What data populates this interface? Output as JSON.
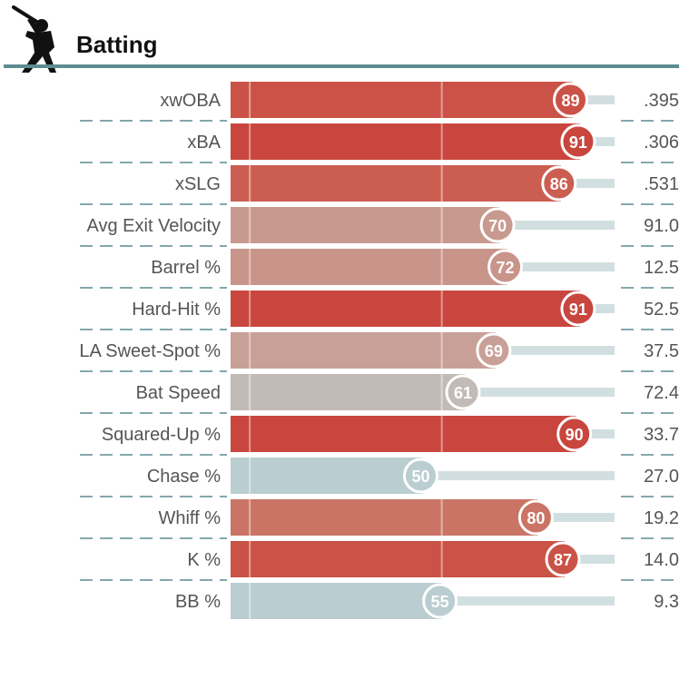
{
  "header": {
    "title": "Batting",
    "icon": "batter-silhouette-icon"
  },
  "colors": {
    "rule": "#5b8c92",
    "dash": "#5b8c92",
    "track": "#d2dfe1",
    "guide": "#ffffff"
  },
  "chart_data": {
    "type": "bar",
    "orientation": "horizontal",
    "title": "Batting",
    "xlim": [
      0,
      100
    ],
    "grid": "vertical guides at 5 and 55 (percentile)",
    "categories": [
      "xwOBA",
      "xBA",
      "xSLG",
      "Avg Exit Velocity",
      "Barrel %",
      "Hard-Hit %",
      "LA Sweet-Spot %",
      "Bat Speed",
      "Squared-Up %",
      "Chase %",
      "Whiff %",
      "K %",
      "BB %"
    ],
    "series": [
      {
        "name": "",
        "values": [
          89,
          91,
          86,
          70,
          72,
          91,
          69,
          61,
          90,
          50,
          80,
          87,
          55
        ]
      }
    ],
    "percentile_labels": [
      "89",
      "91",
      "86",
      "70",
      "72",
      "91",
      "69",
      "61",
      "90",
      "50",
      "80",
      "87",
      "55"
    ],
    "stat_values": [
      ".395",
      ".306",
      ".531",
      "91.0",
      "12.5",
      "52.5",
      "37.5",
      "72.4",
      "33.7",
      "27.0",
      "19.2",
      "14.0",
      "9.3"
    ],
    "bar_colors": [
      "#cb5247",
      "#c9463e",
      "#cc5d51",
      "#c89a8f",
      "#c99489",
      "#c9463e",
      "#c9a097",
      "#c2bab6",
      "#c9463e",
      "#bacdd0",
      "#ca7465",
      "#ca5246",
      "#bacdd0"
    ]
  }
}
